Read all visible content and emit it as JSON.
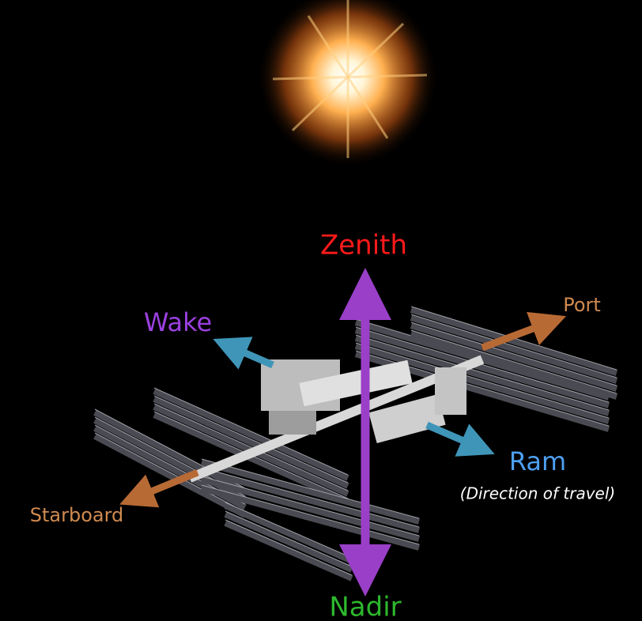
{
  "labels": {
    "zenith": "Zenith",
    "wake": "Wake",
    "port": "Port",
    "ram": "Ram",
    "ram_note": "(Direction of travel)",
    "starboard": "Starboard",
    "nadir": "Nadir"
  }
}
